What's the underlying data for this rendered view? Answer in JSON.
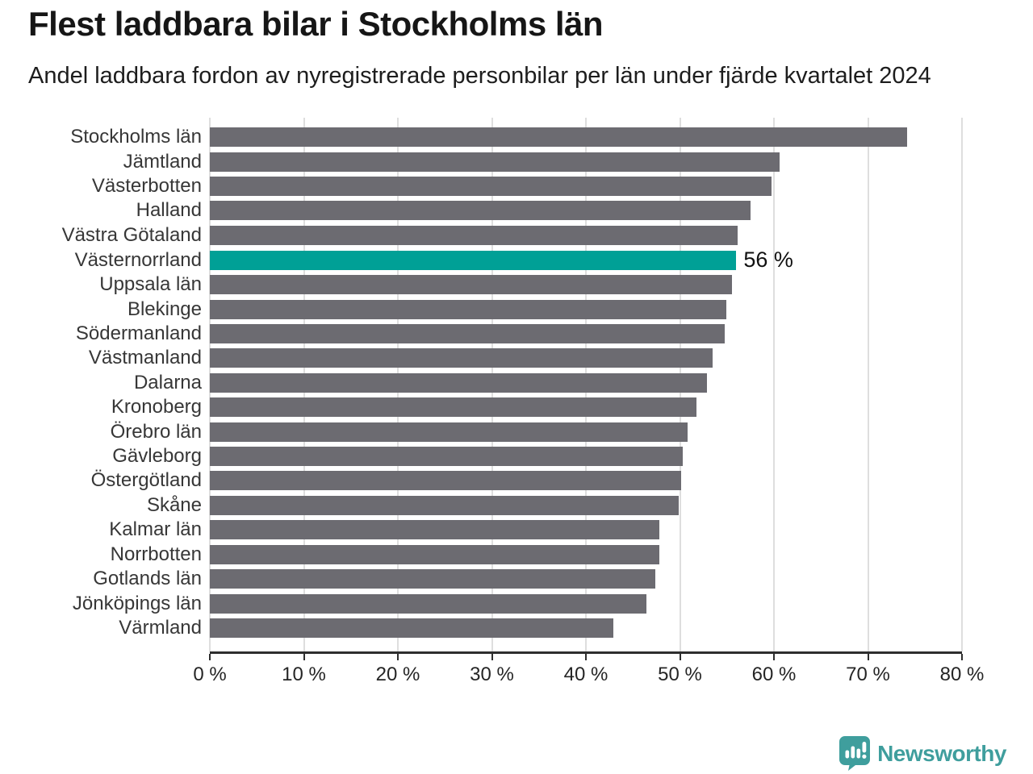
{
  "header": {
    "title": "Flest laddbara bilar i Stockholms län",
    "subtitle": "Andel laddbara fordon av nyregistrerade personbilar per län under fjärde kvartalet 2024"
  },
  "chart_data": {
    "type": "bar",
    "orientation": "horizontal",
    "title": "Flest laddbara bilar i Stockholms län",
    "subtitle": "Andel laddbara fordon av nyregistrerade personbilar per län under fjärde kvartalet 2024",
    "categories": [
      "Stockholms län",
      "Jämtland",
      "Västerbotten",
      "Halland",
      "Västra Götaland",
      "Västernorrland",
      "Uppsala län",
      "Blekinge",
      "Södermanland",
      "Västmanland",
      "Dalarna",
      "Kronoberg",
      "Örebro län",
      "Gävleborg",
      "Östergötland",
      "Skåne",
      "Kalmar län",
      "Norrbotten",
      "Gotlands län",
      "Jönköpings län",
      "Värmland"
    ],
    "values": [
      74.2,
      60.6,
      59.7,
      57.5,
      56.1,
      56.0,
      55.5,
      54.9,
      54.8,
      53.5,
      52.9,
      51.8,
      50.8,
      50.3,
      50.1,
      49.9,
      47.8,
      47.8,
      47.4,
      46.4,
      42.9
    ],
    "unit": "%",
    "highlight_index": 5,
    "highlight_category": "Västernorrland",
    "highlight_value_label": "56 %",
    "xlim": [
      0,
      80
    ],
    "x_tick_values": [
      0,
      10,
      20,
      30,
      40,
      50,
      60,
      70,
      80
    ],
    "x_tick_labels": [
      "0 %",
      "10 %",
      "20 %",
      "30 %",
      "40 %",
      "50 %",
      "60 %",
      "70 %",
      "80 %"
    ],
    "grid": "vertical-gridlines-on",
    "legend": "none",
    "colors": {
      "bar": "#6c6b71",
      "highlight_bar": "#00a096",
      "gridline": "#dedede",
      "axis": "#2e2e2e",
      "label_text": "#373737",
      "title_text": "#161616"
    }
  },
  "footer": {
    "brand": "Newsworthy",
    "brand_color": "#3f9e9d",
    "logo_icon": "newsworthy-speech-bubble-chart-icon"
  }
}
